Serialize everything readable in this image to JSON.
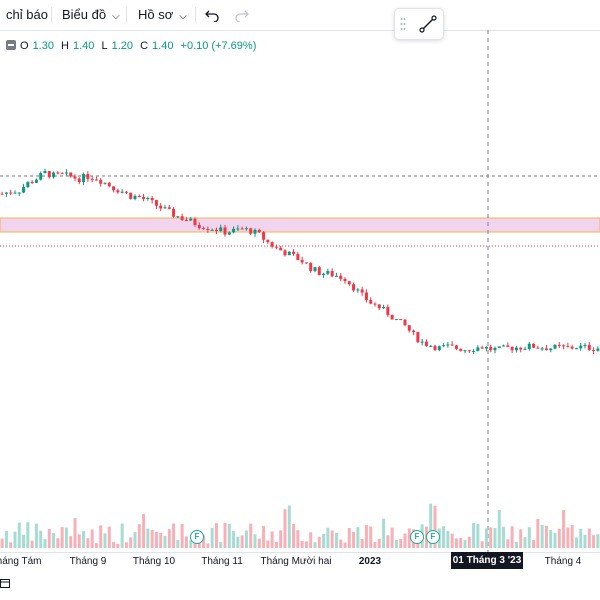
{
  "toolbar": {
    "indicators_label": "chỉ báo",
    "chart_label": "Biểu đồ",
    "profile_label": "Hồ sơ"
  },
  "legend": {
    "open_label": "O",
    "open": "1.30",
    "high_label": "H",
    "high": "1.40",
    "low_label": "L",
    "low": "1.20",
    "close_label": "C",
    "close": "1.40",
    "change": "+0.10 (+7.69%)"
  },
  "icons": {
    "undo": "undo-icon",
    "redo": "redo-icon",
    "drag": "drag-handle-icon",
    "trend": "trend-line-icon",
    "collapse": "collapse-icon"
  },
  "colors": {
    "up": "#089981",
    "down": "#f23645",
    "up_volume": "#a6dcd2",
    "down_volume": "#f7b0b7",
    "zone_fill": "#f2d4ee",
    "zone_border": "#f0b64d",
    "crosshair": "#787b86"
  },
  "time_axis": {
    "labels": [
      {
        "text": "Tháng Tám",
        "year": false
      },
      {
        "text": "Tháng 9",
        "year": false
      },
      {
        "text": "Tháng 10",
        "year": false
      },
      {
        "text": "Tháng 11",
        "year": false
      },
      {
        "text": "Tháng Mười hai",
        "year": false
      },
      {
        "text": "2023",
        "year": true
      },
      {
        "text": "Tháng 4",
        "year": false
      }
    ],
    "crosshair_label": "01 Tháng 3 '23"
  },
  "dividend_badges": [
    {
      "text": "F"
    },
    {
      "text": "F"
    },
    {
      "text": "F"
    }
  ],
  "chart_data": {
    "type": "candlestick",
    "price_path": [
      1.66,
      1.7,
      1.72,
      1.84,
      1.92,
      2.02,
      1.97,
      1.99,
      1.95,
      1.92,
      1.96,
      1.93,
      1.85,
      1.76,
      1.7,
      1.62,
      1.6,
      1.54,
      1.46,
      1.38,
      1.3,
      1.24,
      1.18,
      1.12,
      1.08,
      1.05,
      1.0,
      1.02,
      1.05,
      1.02,
      0.95,
      0.82,
      0.72,
      0.65,
      0.58,
      0.5,
      0.38,
      0.3,
      0.28,
      0.25,
      0.2,
      0.05,
      -0.1,
      -0.22,
      -0.3,
      -0.4,
      -0.52,
      -0.62,
      -0.78,
      -0.9,
      -0.95,
      -1.0,
      -0.98,
      -1.0,
      -1.02,
      -1.0,
      -0.98,
      -1.02,
      -1.03,
      -1.0,
      -0.99,
      -0.98,
      -0.97,
      -0.99,
      -1.0,
      -0.99,
      -1.0,
      -0.98,
      -0.99,
      -1.0
    ]
  }
}
